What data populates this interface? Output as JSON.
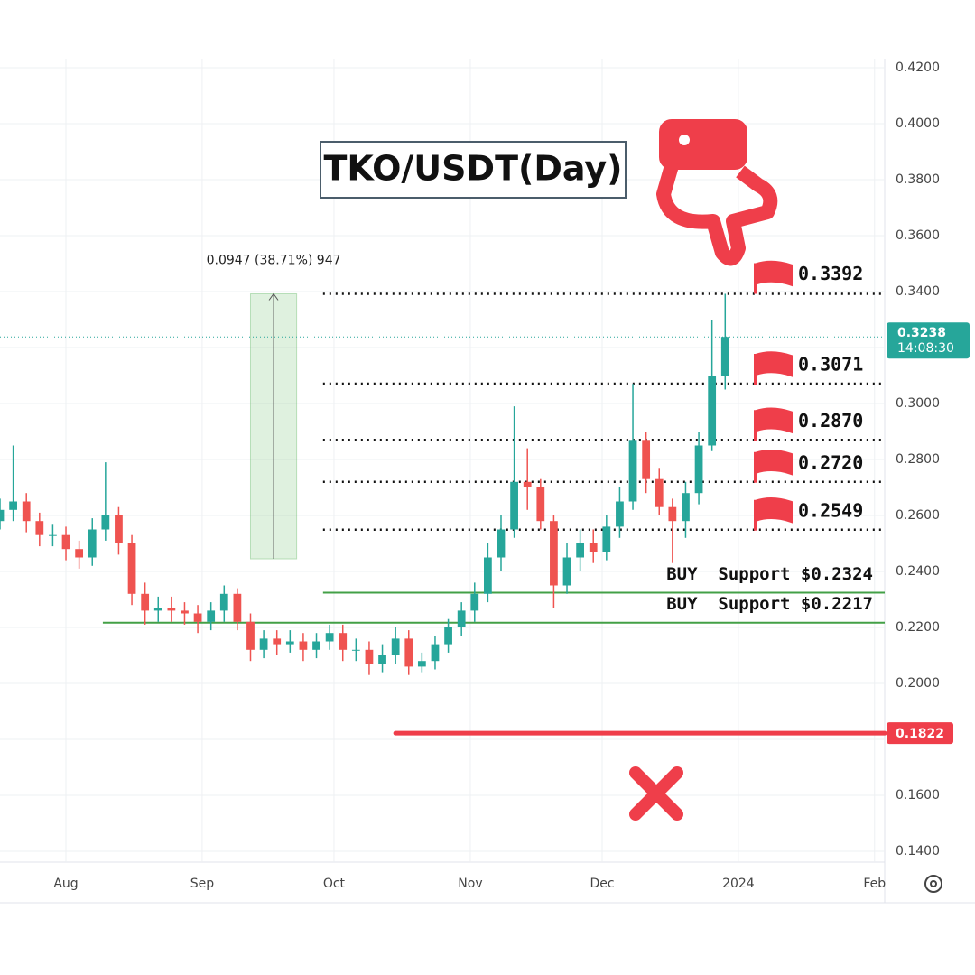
{
  "chart_data": {
    "type": "candlestick",
    "title": "TKO/USDT(Day)",
    "categories": [
      null,
      null,
      null,
      null,
      null,
      null,
      null,
      null,
      null,
      null,
      null,
      null,
      null,
      null,
      null,
      null,
      null,
      null,
      null,
      null,
      null,
      null,
      null,
      null,
      null,
      null,
      null,
      null,
      null,
      null,
      null,
      null,
      null,
      null,
      null,
      null,
      null,
      null,
      null,
      null,
      null,
      null,
      null,
      null,
      null,
      null,
      null,
      null,
      null,
      null,
      null,
      null,
      null,
      null,
      null,
      null
    ],
    "open": [
      0.258,
      0.262,
      0.265,
      0.258,
      0.253,
      0.253,
      0.248,
      0.245,
      0.255,
      0.26,
      0.25,
      0.232,
      0.226,
      0.227,
      0.226,
      0.225,
      0.222,
      0.226,
      0.232,
      0.222,
      0.212,
      0.216,
      0.214,
      0.215,
      0.212,
      0.215,
      0.218,
      0.212,
      0.212,
      0.207,
      0.21,
      0.216,
      0.206,
      0.208,
      0.214,
      0.22,
      0.226,
      0.232,
      0.245,
      0.255,
      0.272,
      0.27,
      0.258,
      0.235,
      0.245,
      0.25,
      0.247,
      0.256,
      0.265,
      0.287,
      0.273,
      0.263,
      0.258,
      0.268,
      0.285,
      0.31
    ],
    "high": [
      0.266,
      0.285,
      0.268,
      0.261,
      0.257,
      0.256,
      0.251,
      0.259,
      0.279,
      0.263,
      0.253,
      0.236,
      0.231,
      0.231,
      0.229,
      0.228,
      0.229,
      0.235,
      0.234,
      0.225,
      0.219,
      0.219,
      0.219,
      0.218,
      0.218,
      0.221,
      0.221,
      0.216,
      0.215,
      0.214,
      0.22,
      0.219,
      0.211,
      0.217,
      0.223,
      0.229,
      0.236,
      0.25,
      0.26,
      0.299,
      0.284,
      0.273,
      0.26,
      0.25,
      0.255,
      0.255,
      0.26,
      0.27,
      0.307,
      0.29,
      0.277,
      0.266,
      0.272,
      0.29,
      0.33,
      0.3392
    ],
    "low": [
      0.255,
      0.258,
      0.254,
      0.249,
      0.249,
      0.244,
      0.241,
      0.242,
      0.251,
      0.246,
      0.228,
      0.221,
      0.222,
      0.222,
      0.221,
      0.218,
      0.219,
      0.222,
      0.219,
      0.208,
      0.209,
      0.21,
      0.211,
      0.208,
      0.209,
      0.212,
      0.208,
      0.208,
      0.203,
      0.204,
      0.207,
      0.203,
      0.204,
      0.205,
      0.211,
      0.217,
      0.222,
      0.229,
      0.24,
      0.252,
      0.262,
      0.255,
      0.227,
      0.232,
      0.24,
      0.243,
      0.244,
      0.252,
      0.262,
      0.268,
      0.26,
      0.243,
      0.252,
      0.264,
      0.283,
      0.305
    ],
    "close": [
      0.262,
      0.265,
      0.258,
      0.253,
      0.253,
      0.248,
      0.245,
      0.255,
      0.26,
      0.25,
      0.232,
      0.226,
      0.227,
      0.226,
      0.225,
      0.222,
      0.226,
      0.232,
      0.222,
      0.212,
      0.216,
      0.214,
      0.215,
      0.212,
      0.215,
      0.218,
      0.212,
      0.212,
      0.207,
      0.21,
      0.216,
      0.206,
      0.208,
      0.214,
      0.22,
      0.226,
      0.232,
      0.245,
      0.255,
      0.272,
      0.27,
      0.258,
      0.235,
      0.245,
      0.25,
      0.247,
      0.256,
      0.265,
      0.287,
      0.273,
      0.263,
      0.258,
      0.268,
      0.285,
      0.31,
      0.3238
    ],
    "up_color": "#26a69a",
    "down_color": "#ef5350",
    "xlim": [
      0,
      67.1
    ],
    "xticks": [
      {
        "value": 5,
        "label": "Aug"
      },
      {
        "value": 15.33,
        "label": "Sep"
      },
      {
        "value": 25.33,
        "label": "Oct"
      },
      {
        "value": 35.67,
        "label": "Nov"
      },
      {
        "value": 45.67,
        "label": "Dec"
      },
      {
        "value": 56,
        "label": "2024"
      },
      {
        "value": 66.33,
        "label": "Feb"
      }
    ],
    "ylim": [
      0.14,
      0.42
    ],
    "yticks": [
      {
        "value": 0.14,
        "label": "0.1400"
      },
      {
        "value": 0.16,
        "label": "0.1600"
      },
      {
        "value": 0.18,
        "label": "0.1800"
      },
      {
        "value": 0.2,
        "label": "0.2000"
      },
      {
        "value": 0.22,
        "label": "0.2200"
      },
      {
        "value": 0.24,
        "label": "0.2400"
      },
      {
        "value": 0.26,
        "label": "0.2600"
      },
      {
        "value": 0.28,
        "label": "0.2800"
      },
      {
        "value": 0.3,
        "label": "0.3000"
      },
      {
        "value": 0.32,
        "label": "0.3200"
      },
      {
        "value": 0.34,
        "label": "0.3400"
      },
      {
        "value": 0.36,
        "label": "0.3600"
      },
      {
        "value": 0.38,
        "label": "0.3800"
      },
      {
        "value": 0.4,
        "label": "0.4000"
      },
      {
        "value": 0.42,
        "label": "0.4200"
      }
    ],
    "grid": true,
    "measure": {
      "label": "0.0947 (38.71%) 947",
      "from": 0.2445,
      "to": 0.3392,
      "start": 19,
      "end": 22.5
    },
    "levels": {
      "values": [
        0.3392,
        0.3071,
        0.287,
        0.272,
        0.2549
      ],
      "value_labels": [
        "0.3392",
        "0.3071",
        "0.2870",
        "0.2720",
        "0.2549"
      ],
      "start": 24.5
    },
    "supports": [
      {
        "value": 0.2324,
        "label": "BUY  Support $0.2324",
        "start": 24.5
      },
      {
        "value": 0.2217,
        "label": "BUY  Support $0.2217",
        "start": 7.8
      }
    ],
    "stop": {
      "value": 0.1822,
      "label": "0.1822",
      "start": 30
    },
    "last_price": {
      "value": 0.3238,
      "label": "0.3238",
      "countdown": "14:08:30"
    }
  }
}
